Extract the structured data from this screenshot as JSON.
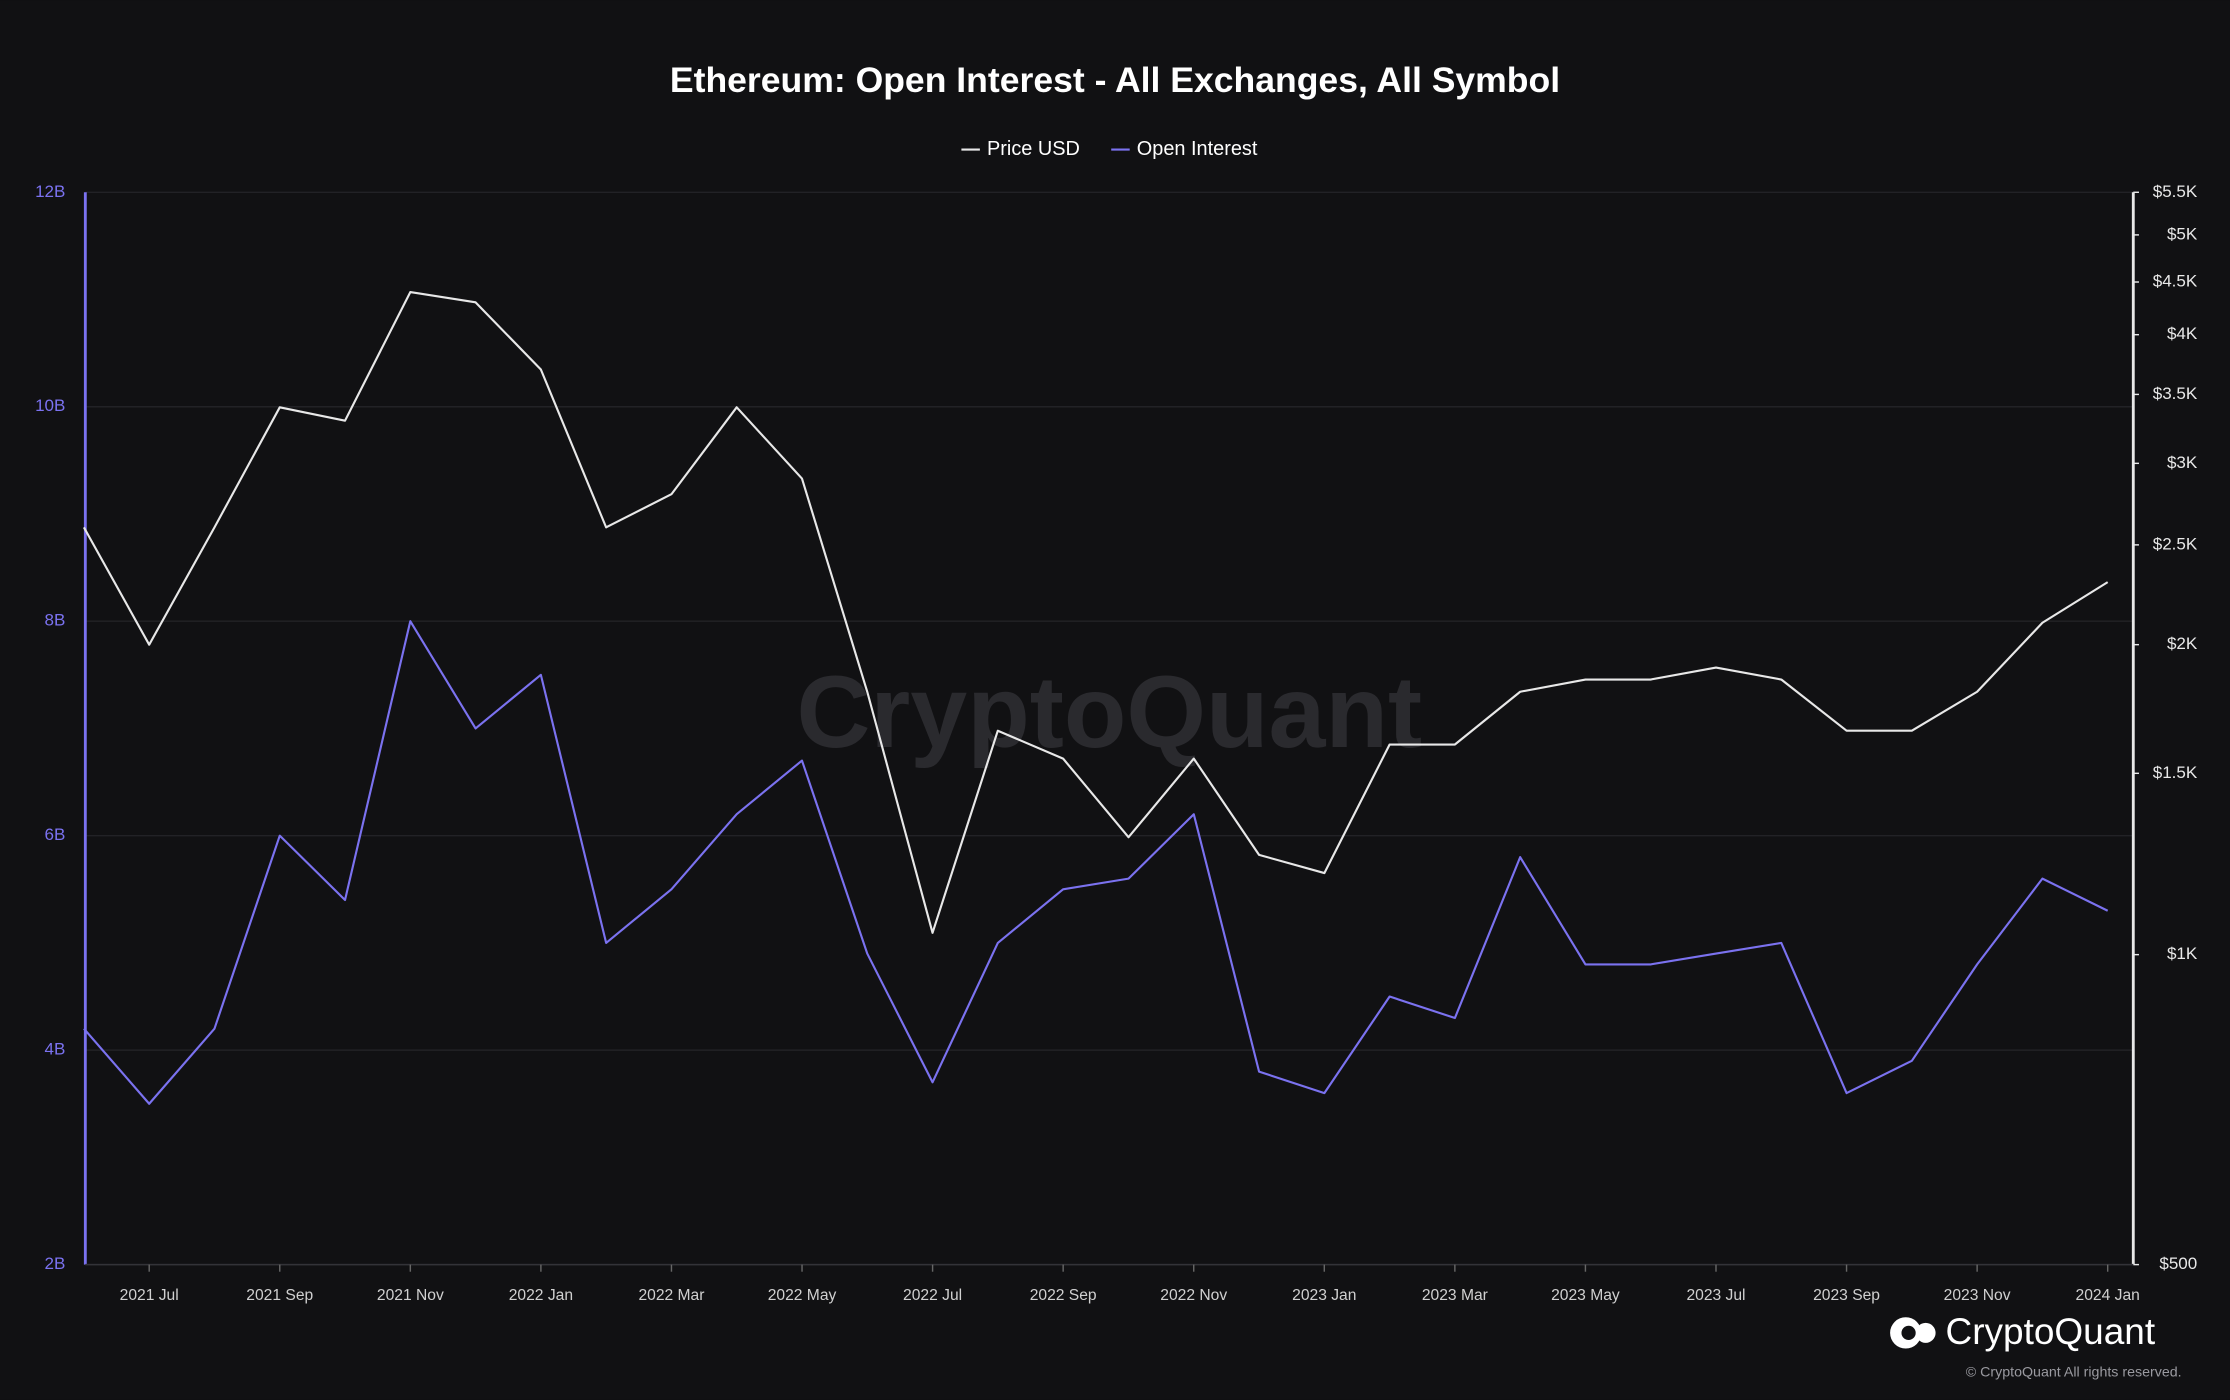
{
  "chart_data": {
    "type": "line",
    "title": "Ethereum: Open Interest - All Exchanges, All Symbol",
    "watermark": "CryptoQuant",
    "brand": "CryptoQuant",
    "copyright": "© CryptoQuant All rights reserved.",
    "categories": [
      null,
      "2021 Jul",
      null,
      "2021 Sep",
      null,
      "2021 Nov",
      null,
      "2022 Jan",
      null,
      "2022 Mar",
      null,
      "2022 May",
      null,
      "2022 Jul",
      null,
      "2022 Sep",
      null,
      "2022 Nov",
      null,
      "2023 Jan",
      null,
      "2023 Mar",
      null,
      "2023 May",
      null,
      "2023 Jul",
      null,
      "2023 Sep",
      null,
      "2023 Nov",
      null,
      "2024 Jan"
    ],
    "series": [
      {
        "name": "Price USD",
        "color": "#e8e8e8",
        "axis": "y2",
        "values": [
          2600,
          2000,
          2600,
          3400,
          3300,
          4400,
          4300,
          3700,
          2600,
          2800,
          3400,
          2900,
          1800,
          1050,
          1650,
          1550,
          1300,
          1550,
          1250,
          1200,
          1600,
          1600,
          1800,
          1850,
          1850,
          1900,
          1850,
          1650,
          1650,
          1800,
          2100,
          2300
        ]
      },
      {
        "name": "Open Interest",
        "color": "#7b72f0",
        "values": [
          4.2,
          3.5,
          4.2,
          6.0,
          5.4,
          8.0,
          7.0,
          7.5,
          5.0,
          5.5,
          6.2,
          6.7,
          4.9,
          3.7,
          5.0,
          5.5,
          5.6,
          6.2,
          3.8,
          3.6,
          4.5,
          4.3,
          5.8,
          4.8,
          4.8,
          4.9,
          5.0,
          3.6,
          3.9,
          4.8,
          5.6,
          5.3
        ]
      }
    ],
    "ylim": [
      2,
      12
    ],
    "yticks": [
      {
        "value": 2,
        "label": "2B"
      },
      {
        "value": 4,
        "label": "4B"
      },
      {
        "value": 6,
        "label": "6B"
      },
      {
        "value": 8,
        "label": "8B"
      },
      {
        "value": 10,
        "label": "10B"
      },
      {
        "value": 12,
        "label": "12B"
      }
    ],
    "y2lim": [
      500,
      5500
    ],
    "y2log": true,
    "y2ticks": [
      {
        "value": 500,
        "label": "$500"
      },
      {
        "value": 1000,
        "label": "$1K"
      },
      {
        "value": 1500,
        "label": "$1.5K"
      },
      {
        "value": 2000,
        "label": "$2K"
      },
      {
        "value": 2500,
        "label": "$2.5K"
      },
      {
        "value": 3000,
        "label": "$3K"
      },
      {
        "value": 3500,
        "label": "$3.5K"
      },
      {
        "value": 4000,
        "label": "$4K"
      },
      {
        "value": 4500,
        "label": "$4.5K"
      },
      {
        "value": 5000,
        "label": "$5K"
      },
      {
        "value": 5500,
        "label": "$5.5K"
      }
    ],
    "grid": true
  }
}
